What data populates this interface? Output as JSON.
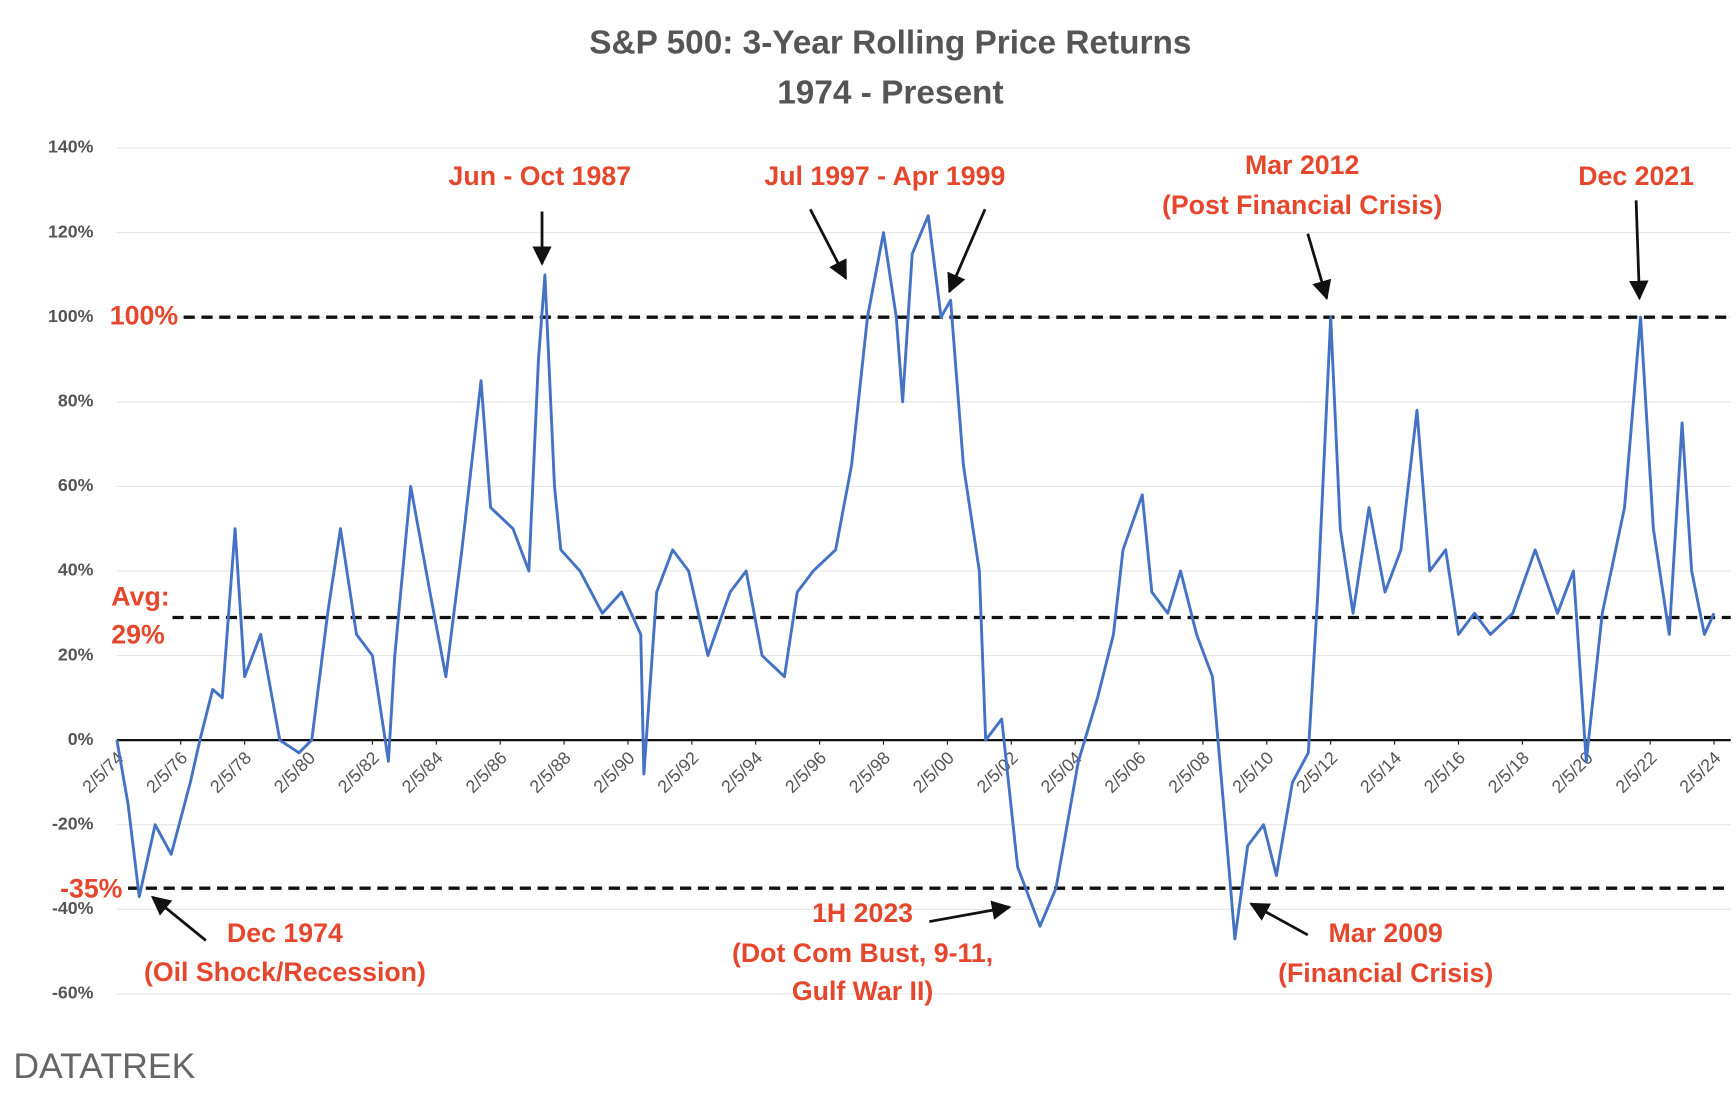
{
  "chart_data": {
    "type": "line",
    "title": "S&P 500: 3-Year Rolling Price Returns",
    "subtitle": "1974 - Present",
    "source": "DATATREK",
    "grid": true,
    "xlim": [
      1974.1,
      2024.6
    ],
    "ylim": [
      -60,
      140
    ],
    "yticks": [
      {
        "value": -60,
        "label": "-60%"
      },
      {
        "value": -40,
        "label": "-40%"
      },
      {
        "value": -20,
        "label": "-20%"
      },
      {
        "value": 0,
        "label": "0%"
      },
      {
        "value": 20,
        "label": "20%"
      },
      {
        "value": 40,
        "label": "40%"
      },
      {
        "value": 60,
        "label": "60%"
      },
      {
        "value": 80,
        "label": "80%"
      },
      {
        "value": 100,
        "label": "100%"
      },
      {
        "value": 120,
        "label": "120%"
      },
      {
        "value": 140,
        "label": "140%"
      }
    ],
    "xticks": [
      {
        "value": 1974.1,
        "label": "2/5/74"
      },
      {
        "value": 1976.1,
        "label": "2/5/76"
      },
      {
        "value": 1978.1,
        "label": "2/5/78"
      },
      {
        "value": 1980.1,
        "label": "2/5/80"
      },
      {
        "value": 1982.1,
        "label": "2/5/82"
      },
      {
        "value": 1984.1,
        "label": "2/5/84"
      },
      {
        "value": 1986.1,
        "label": "2/5/86"
      },
      {
        "value": 1988.1,
        "label": "2/5/88"
      },
      {
        "value": 1990.1,
        "label": "2/5/90"
      },
      {
        "value": 1992.1,
        "label": "2/5/92"
      },
      {
        "value": 1994.1,
        "label": "2/5/94"
      },
      {
        "value": 1996.1,
        "label": "2/5/96"
      },
      {
        "value": 1998.1,
        "label": "2/5/98"
      },
      {
        "value": 2000.1,
        "label": "2/5/00"
      },
      {
        "value": 2002.1,
        "label": "2/5/02"
      },
      {
        "value": 2004.1,
        "label": "2/5/04"
      },
      {
        "value": 2006.1,
        "label": "2/5/06"
      },
      {
        "value": 2008.1,
        "label": "2/5/08"
      },
      {
        "value": 2010.1,
        "label": "2/5/10"
      },
      {
        "value": 2012.1,
        "label": "2/5/12"
      },
      {
        "value": 2014.1,
        "label": "2/5/14"
      },
      {
        "value": 2016.1,
        "label": "2/5/16"
      },
      {
        "value": 2018.1,
        "label": "2/5/18"
      },
      {
        "value": 2020.1,
        "label": "2/5/20"
      },
      {
        "value": 2022.1,
        "label": "2/5/22"
      },
      {
        "value": 2024.1,
        "label": "2/5/24"
      }
    ],
    "x": [
      1974.1,
      1974.45,
      1974.8,
      1975.3,
      1975.8,
      1976.4,
      1976.7,
      1977.1,
      1977.4,
      1977.8,
      1978.1,
      1978.6,
      1979.2,
      1979.8,
      1980.2,
      1980.7,
      1981.1,
      1981.6,
      1982.1,
      1982.6,
      1982.8,
      1983.3,
      1983.9,
      1984.4,
      1984.9,
      1985.5,
      1985.8,
      1986.5,
      1987.0,
      1987.3,
      1987.5,
      1987.8,
      1988.0,
      1988.6,
      1989.3,
      1989.9,
      1990.5,
      1990.6,
      1991.0,
      1991.5,
      1992.0,
      1992.6,
      1993.3,
      1993.8,
      1994.3,
      1995.0,
      1995.4,
      1995.9,
      1996.6,
      1997.1,
      1997.6,
      1998.1,
      1998.5,
      1998.7,
      1999.0,
      1999.5,
      1999.9,
      2000.2,
      2000.6,
      2001.1,
      2001.3,
      2001.8,
      2002.3,
      2003.0,
      2003.5,
      2004.2,
      2004.8,
      2005.3,
      2005.6,
      2006.2,
      2006.5,
      2007.0,
      2007.4,
      2007.9,
      2008.4,
      2008.8,
      2009.1,
      2009.5,
      2010.0,
      2010.4,
      2010.9,
      2011.4,
      2011.7,
      2012.1,
      2012.4,
      2012.8,
      2013.3,
      2013.8,
      2014.3,
      2014.8,
      2015.2,
      2015.7,
      2016.1,
      2016.6,
      2017.1,
      2017.8,
      2018.5,
      2019.2,
      2019.7,
      2020.1,
      2020.6,
      2021.3,
      2021.8,
      2022.2,
      2022.7,
      2023.1,
      2023.4,
      2023.8,
      2024.1
    ],
    "series": [
      {
        "name": "3-Year Rolling Price Return",
        "color": "#4472c4",
        "values": [
          0,
          -15,
          -37,
          -20,
          -27,
          -10,
          0,
          12,
          10,
          50,
          15,
          25,
          0,
          -3,
          0,
          30,
          50,
          25,
          20,
          -5,
          20,
          60,
          35,
          15,
          45,
          85,
          55,
          50,
          40,
          90,
          110,
          60,
          45,
          40,
          30,
          35,
          25,
          -8,
          35,
          45,
          40,
          20,
          35,
          40,
          20,
          15,
          35,
          40,
          45,
          65,
          100,
          120,
          100,
          80,
          115,
          124,
          100,
          104,
          65,
          40,
          0,
          5,
          -30,
          -44,
          -35,
          -5,
          10,
          25,
          45,
          58,
          35,
          30,
          40,
          25,
          15,
          -20,
          -47,
          -25,
          -20,
          -32,
          -10,
          -3,
          35,
          100,
          50,
          30,
          55,
          35,
          45,
          78,
          40,
          45,
          25,
          30,
          25,
          30,
          45,
          30,
          40,
          -5,
          30,
          55,
          100,
          50,
          25,
          75,
          40,
          25,
          30
        ]
      }
    ],
    "reference_lines": [
      {
        "value": 100,
        "label": [
          "100%"
        ]
      },
      {
        "value": 29,
        "label": [
          "Avg:",
          "29%"
        ]
      },
      {
        "value": -35,
        "label": [
          "-35%"
        ]
      }
    ],
    "annotations": [
      {
        "lines": [
          "Jun - Oct 1987"
        ]
      },
      {
        "lines": [
          "Jul 1997 - Apr 1999"
        ]
      },
      {
        "lines": [
          "Mar 2012",
          "(Post Financial Crisis)"
        ]
      },
      {
        "lines": [
          "Dec 2021"
        ]
      },
      {
        "lines": [
          "Dec 1974",
          "(Oil Shock/Recession)"
        ]
      },
      {
        "lines": [
          "1H 2023",
          "(Dot Com Bust, 9-11,",
          "Gulf War II)"
        ]
      },
      {
        "lines": [
          "Mar 2009",
          "(Financial Crisis)"
        ]
      }
    ]
  }
}
